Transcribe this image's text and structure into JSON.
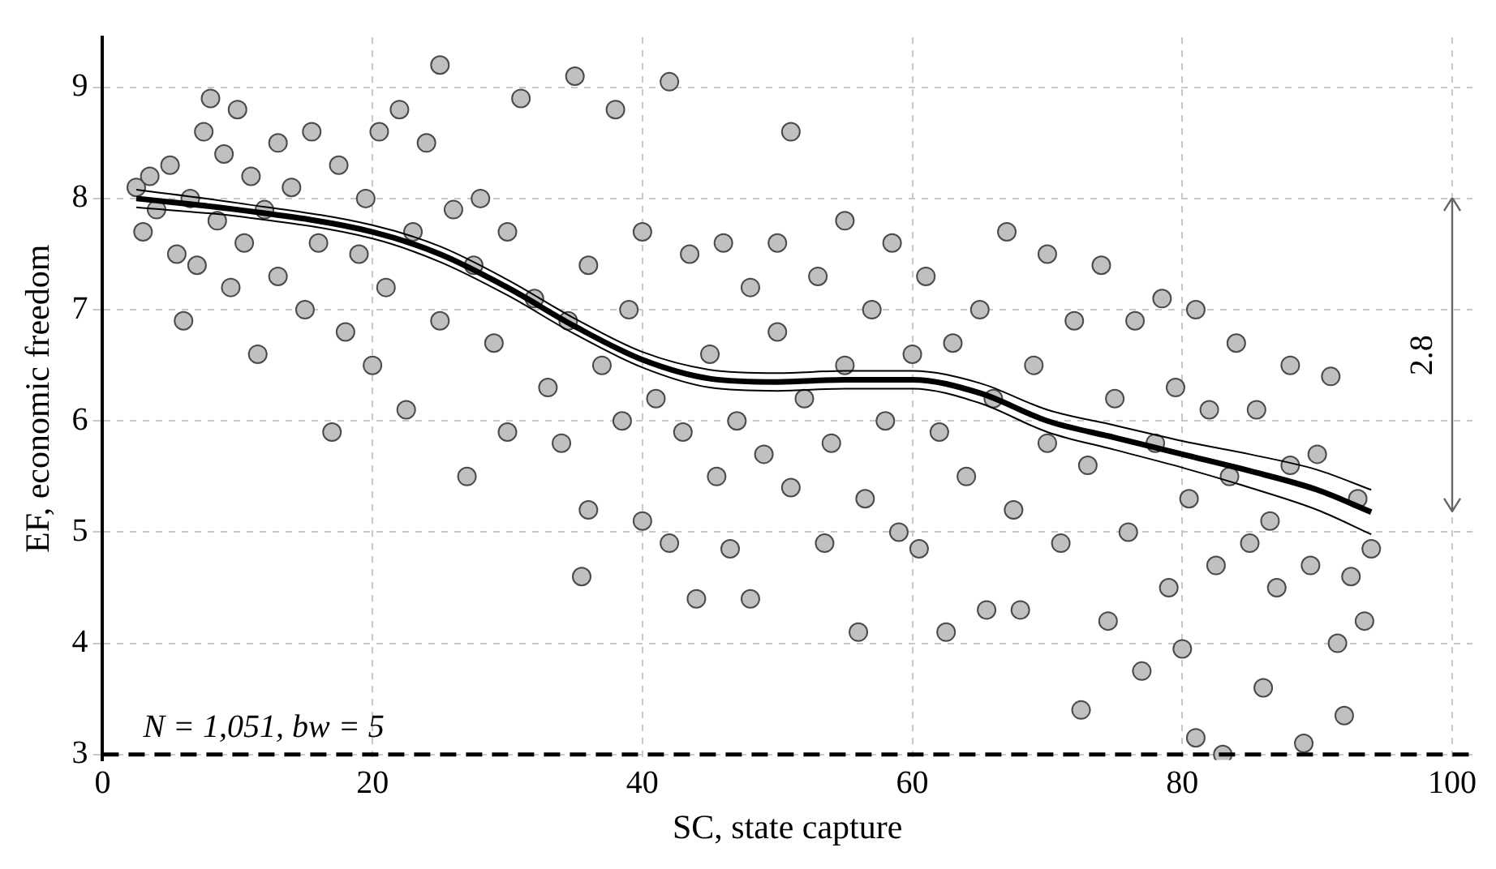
{
  "chart_data": {
    "type": "scatter",
    "xlabel": "SC, state capture",
    "ylabel": "EF, economic freedom",
    "xlim": [
      0,
      101.5
    ],
    "ylim": [
      2.95,
      9.45
    ],
    "xticks": [
      0,
      20,
      40,
      60,
      80,
      100
    ],
    "yticks": [
      3,
      4,
      5,
      6,
      7,
      8,
      9
    ],
    "grid": true,
    "legend": false,
    "marker": "circle",
    "ref_lines": [
      {
        "axis": "y",
        "value": 3,
        "color": "#000000",
        "line_style": "dashed"
      }
    ],
    "annotations": [
      "N = 1,051, bw = 5",
      "2.8"
    ],
    "series": [
      {
        "color": "#c0c0c0",
        "x": [
          2.5,
          3,
          3.5,
          4,
          5,
          5.5,
          6,
          6.5,
          7,
          7.5,
          8,
          8.5,
          9,
          9.5,
          10,
          10.5,
          11,
          11.5,
          12,
          13,
          13,
          14,
          15,
          15.5,
          16,
          17,
          17.5,
          18,
          19,
          19.5,
          20,
          20.5,
          21,
          22,
          22.5,
          23,
          24,
          25,
          25,
          26,
          27,
          27.5,
          28,
          29,
          30,
          30,
          31,
          32,
          33,
          34,
          34.5,
          35,
          35.5,
          36,
          36,
          37,
          38,
          38.5,
          39,
          40,
          40,
          41,
          42,
          42,
          43,
          43.5,
          44,
          45,
          45.5,
          46,
          46.5,
          47,
          48,
          48,
          49,
          50,
          50,
          51,
          51,
          52,
          53,
          53.5,
          54,
          55,
          55,
          56,
          56.5,
          57,
          58,
          58.5,
          59,
          60,
          60.5,
          61,
          62,
          62.5,
          63,
          64,
          65,
          65.5,
          66,
          67,
          67.5,
          68,
          69,
          70,
          70,
          71,
          72,
          72.5,
          73,
          74,
          74.5,
          75,
          76,
          76.5,
          77,
          78,
          78.5,
          79,
          79.5,
          80,
          80.5,
          81,
          81,
          82,
          82.5,
          83,
          83.5,
          84,
          85,
          85.5,
          86,
          86.5,
          87,
          88,
          88,
          89,
          89.5,
          90,
          91,
          91.5,
          92,
          92.5,
          93,
          94,
          93.5
        ],
        "values": [
          8.1,
          7.7,
          8.2,
          7.9,
          8.3,
          7.5,
          6.9,
          8.0,
          7.4,
          8.6,
          8.9,
          7.8,
          8.4,
          7.2,
          8.8,
          7.6,
          8.2,
          6.6,
          7.9,
          8.5,
          7.3,
          8.1,
          7.0,
          8.6,
          7.6,
          5.9,
          8.3,
          6.8,
          7.5,
          8.0,
          6.5,
          8.6,
          7.2,
          8.8,
          6.1,
          7.7,
          8.5,
          9.2,
          6.9,
          7.9,
          5.5,
          7.4,
          8.0,
          6.7,
          7.7,
          5.9,
          8.9,
          7.1,
          6.3,
          5.8,
          6.9,
          9.1,
          4.6,
          7.4,
          5.2,
          6.5,
          8.8,
          6.0,
          7.0,
          5.1,
          7.7,
          6.2,
          9.05,
          4.9,
          5.9,
          7.5,
          4.4,
          6.6,
          5.5,
          7.6,
          4.85,
          6.0,
          7.2,
          4.4,
          5.7,
          6.8,
          7.6,
          8.6,
          5.4,
          6.2,
          7.3,
          4.9,
          5.8,
          7.8,
          6.5,
          4.1,
          5.3,
          7.0,
          6.0,
          7.6,
          5.0,
          6.6,
          4.85,
          7.3,
          5.9,
          4.1,
          6.7,
          5.5,
          7.0,
          4.3,
          6.2,
          7.7,
          5.2,
          4.3,
          6.5,
          7.5,
          5.8,
          4.9,
          6.9,
          3.4,
          5.6,
          7.4,
          4.2,
          6.2,
          5.0,
          6.9,
          3.75,
          5.8,
          7.1,
          4.5,
          6.3,
          3.95,
          5.3,
          3.15,
          7.0,
          6.1,
          4.7,
          3.0,
          5.5,
          6.7,
          4.9,
          6.1,
          3.6,
          5.1,
          4.5,
          6.5,
          5.6,
          3.1,
          4.7,
          5.7,
          6.4,
          4.0,
          3.35,
          4.6,
          5.3,
          4.85,
          4.2
        ]
      },
      {
        "type": "line",
        "color": "#000000",
        "marker": "none",
        "x": [
          2.5,
          10,
          20,
          25,
          30,
          35,
          40,
          45,
          50,
          55,
          60,
          65,
          70,
          75,
          80,
          85,
          90,
          94
        ],
        "values": [
          8.0,
          7.9,
          7.7,
          7.5,
          7.2,
          6.85,
          6.55,
          6.38,
          6.35,
          6.37,
          6.37,
          6.25,
          6.0,
          5.85,
          5.7,
          5.55,
          5.38,
          5.18
        ]
      },
      {
        "type": "line",
        "color": "#000000",
        "marker": "none",
        "x": [
          2.5,
          10,
          20,
          25,
          30,
          35,
          40,
          45,
          50,
          55,
          60,
          65,
          70,
          75,
          80,
          85,
          90,
          94
        ],
        "values": [
          7.92,
          7.84,
          7.64,
          7.43,
          7.13,
          6.78,
          6.48,
          6.3,
          6.27,
          6.29,
          6.29,
          6.16,
          5.9,
          5.74,
          5.58,
          5.4,
          5.2,
          4.98
        ]
      },
      {
        "type": "line",
        "color": "#000000",
        "marker": "none",
        "x": [
          2.5,
          10,
          20,
          25,
          30,
          35,
          40,
          45,
          50,
          55,
          60,
          65,
          70,
          75,
          80,
          85,
          90,
          94
        ],
        "values": [
          8.08,
          7.96,
          7.76,
          7.57,
          7.27,
          6.92,
          6.62,
          6.46,
          6.43,
          6.45,
          6.45,
          6.34,
          6.1,
          5.96,
          5.82,
          5.7,
          5.56,
          5.38
        ]
      }
    ]
  }
}
